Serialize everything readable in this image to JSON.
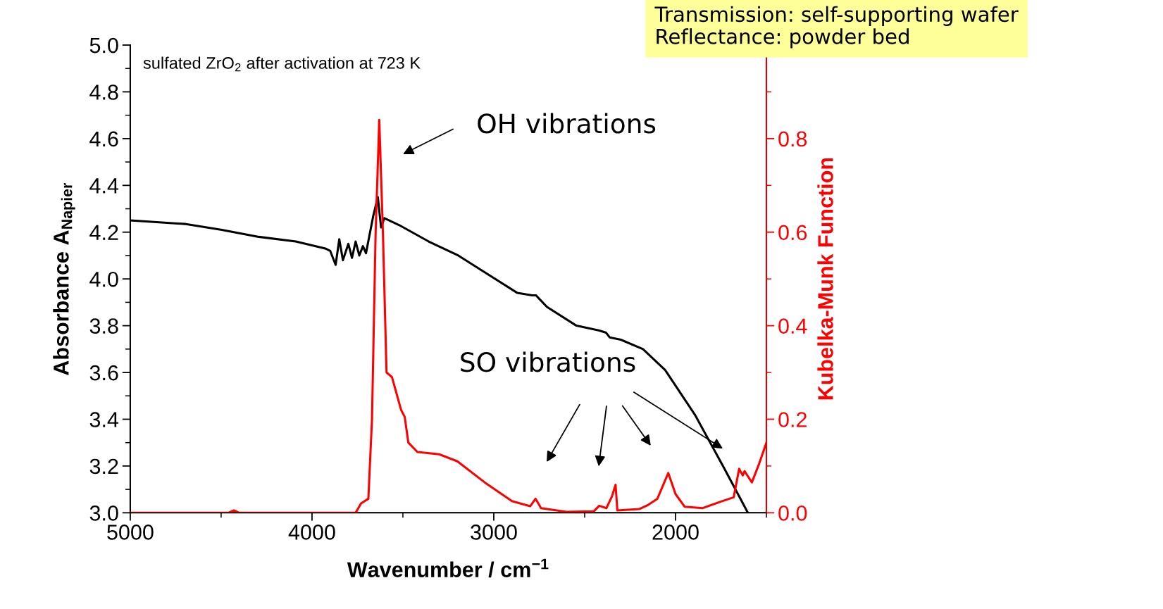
{
  "chart_data": {
    "type": "line",
    "xlabel": "Wavenumber / cm$^{−1}$",
    "ylabel": "Absorbance A$_{Napier}$",
    "y2label": "Kubelka-Munk Function",
    "xlim": [
      5000,
      1500
    ],
    "xticks": [
      5000,
      4000,
      3000,
      2000
    ],
    "ylim": [
      3.0,
      5.0
    ],
    "yticks": [
      {
        "value": 3,
        "label": "3.0"
      },
      3.2,
      3.4,
      3.6,
      3.8,
      {
        "value": 4,
        "label": "4.0"
      },
      4.2,
      4.4,
      4.6,
      4.8,
      {
        "value": 5,
        "label": "5.0"
      }
    ],
    "y2lim": [
      0.0,
      1.0
    ],
    "y2ticks": [
      {
        "value": 0.0,
        "label": "0.0"
      },
      0.2,
      0.4,
      0.6,
      0.8
    ],
    "grid": false,
    "legend": false,
    "marker": "none",
    "line_style": "solid",
    "series": [
      {
        "color": "#000000",
        "x": [
          5000,
          4700,
          4496,
          4293,
          4089,
          3927,
          3900,
          3870,
          3850,
          3830,
          3800,
          3780,
          3760,
          3740,
          3720,
          3703,
          3663,
          3638,
          3620,
          3602,
          3520,
          3358,
          3195,
          3033,
          2870,
          2789,
          2768,
          2707,
          2545,
          2423,
          2382,
          2362,
          2301,
          2179,
          2057,
          1894,
          1732,
          1650,
          1602
        ],
        "values": [
          4.25,
          4.235,
          4.21,
          4.18,
          4.16,
          4.13,
          4.12,
          4.06,
          4.17,
          4.08,
          4.15,
          4.09,
          4.16,
          4.1,
          4.14,
          4.11,
          4.27,
          4.35,
          4.22,
          4.26,
          4.23,
          4.16,
          4.1,
          4.02,
          3.94,
          3.93,
          3.93,
          3.88,
          3.8,
          3.78,
          3.77,
          3.75,
          3.74,
          3.7,
          3.61,
          3.42,
          3.19,
          3.07,
          3.0
        ]
      },
      {
        "color": "#ff0000",
        "axis": "y2",
        "x": [
          5000,
          4460,
          4430,
          4400,
          3760,
          3730,
          3690,
          3670,
          3650,
          3630,
          3610,
          3590,
          3560,
          3510,
          3490,
          3470,
          3420,
          3300,
          3200,
          3050,
          2900,
          2800,
          2770,
          2740,
          2600,
          2450,
          2420,
          2380,
          2350,
          2330,
          2320,
          2200,
          2150,
          2100,
          2040,
          2000,
          1950,
          1850,
          1750,
          1680,
          1650,
          1630,
          1620,
          1580,
          1540,
          1500
        ],
        "values": [
          0.0,
          0.0,
          0.005,
          0.0,
          0.0,
          0.02,
          0.03,
          0.2,
          0.6,
          0.84,
          0.6,
          0.3,
          0.29,
          0.22,
          0.205,
          0.15,
          0.13,
          0.125,
          0.11,
          0.065,
          0.025,
          0.014,
          0.03,
          0.01,
          0.002,
          0.003,
          0.015,
          0.01,
          0.035,
          0.06,
          0.005,
          0.008,
          0.017,
          0.03,
          0.085,
          0.04,
          0.013,
          0.01,
          0.024,
          0.033,
          0.094,
          0.08,
          0.089,
          0.065,
          0.105,
          0.15
        ]
      }
    ],
    "annotations": [
      "sulfated ZrO$_{2}$ after activation at 723 K",
      "OH vibrations",
      "SO vibrations",
      "Transmission: self-supporting wafer\nReflectance: powder bed"
    ]
  }
}
